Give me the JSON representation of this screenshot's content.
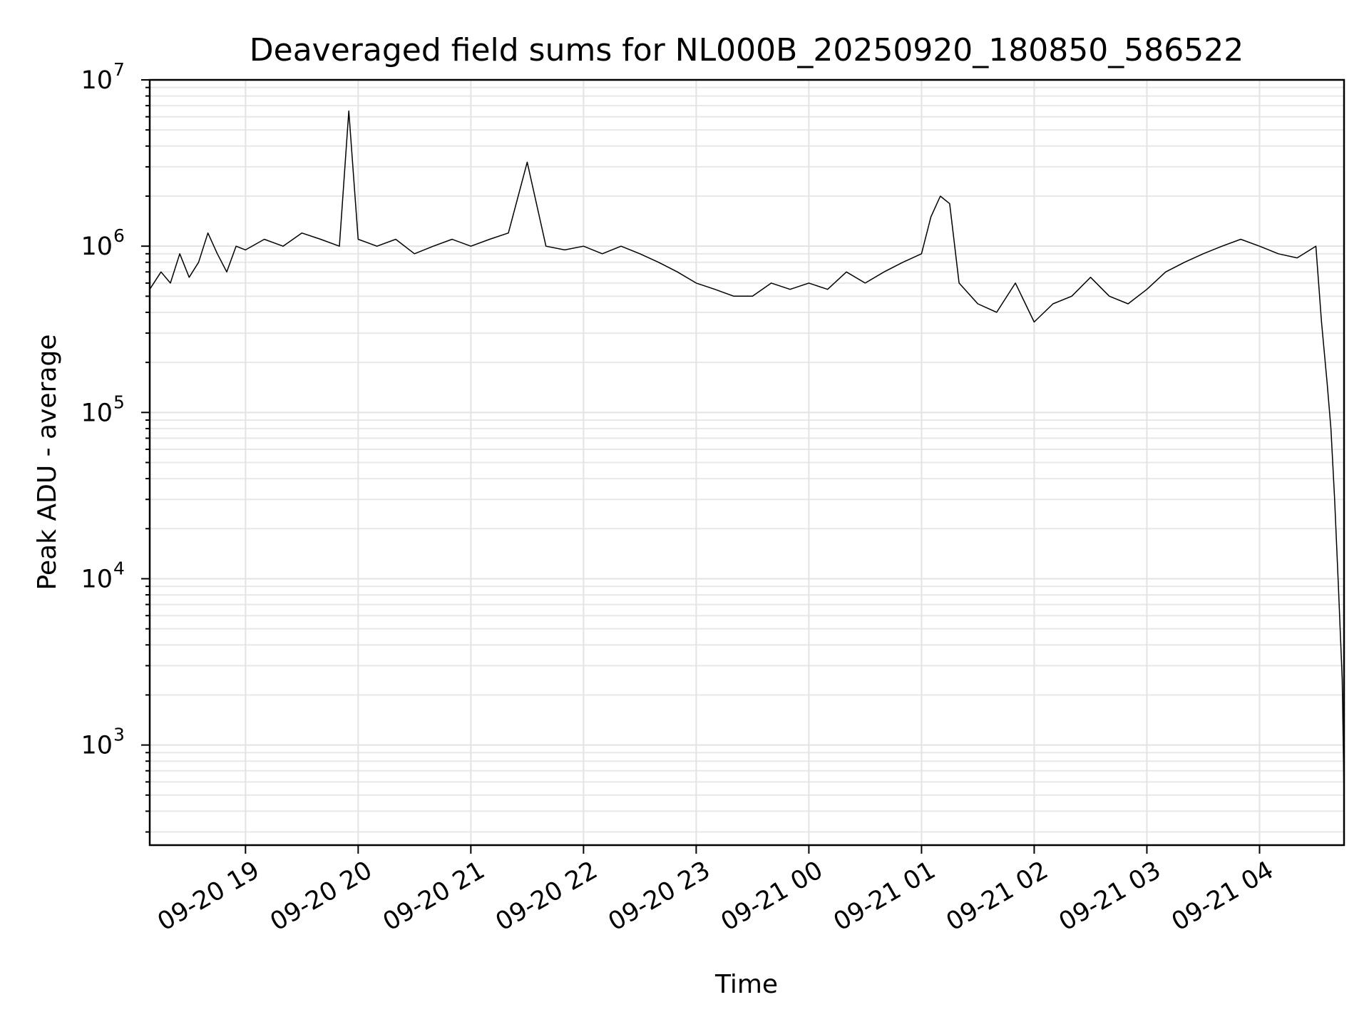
{
  "chart_data": {
    "type": "line",
    "title": "Deaveraged field sums for NL000B_20250920_180850_586522",
    "xlabel": "Time",
    "ylabel": "Peak ADU - average",
    "yscale": "log",
    "ylim": [
      250,
      10000000
    ],
    "xlim": [
      "2025-09-20 18:09",
      "2025-09-21 04:45"
    ],
    "grid": true,
    "x_ticks": [
      {
        "value": "2025-09-20 19:00",
        "label": "09-20 19"
      },
      {
        "value": "2025-09-20 20:00",
        "label": "09-20 20"
      },
      {
        "value": "2025-09-20 21:00",
        "label": "09-20 21"
      },
      {
        "value": "2025-09-20 22:00",
        "label": "09-20 22"
      },
      {
        "value": "2025-09-20 23:00",
        "label": "09-20 23"
      },
      {
        "value": "2025-09-21 00:00",
        "label": "09-21 00"
      },
      {
        "value": "2025-09-21 01:00",
        "label": "09-21 01"
      },
      {
        "value": "2025-09-21 02:00",
        "label": "09-21 02"
      },
      {
        "value": "2025-09-21 03:00",
        "label": "09-21 03"
      },
      {
        "value": "2025-09-21 04:00",
        "label": "09-21 04"
      }
    ],
    "y_ticks": [
      {
        "value": 1000,
        "base": "10",
        "exp": "3"
      },
      {
        "value": 10000,
        "base": "10",
        "exp": "4"
      },
      {
        "value": 100000,
        "base": "10",
        "exp": "5"
      },
      {
        "value": 1000000,
        "base": "10",
        "exp": "6"
      },
      {
        "value": 10000000,
        "base": "10",
        "exp": "7"
      }
    ],
    "series": [
      {
        "color": "#000000",
        "x": [
          "2025-09-20 18:09",
          "2025-09-20 18:15",
          "2025-09-20 18:20",
          "2025-09-20 18:25",
          "2025-09-20 18:30",
          "2025-09-20 18:35",
          "2025-09-20 18:40",
          "2025-09-20 18:45",
          "2025-09-20 18:50",
          "2025-09-20 18:55",
          "2025-09-20 19:00",
          "2025-09-20 19:10",
          "2025-09-20 19:20",
          "2025-09-20 19:30",
          "2025-09-20 19:40",
          "2025-09-20 19:50",
          "2025-09-20 19:55",
          "2025-09-20 20:00",
          "2025-09-20 20:10",
          "2025-09-20 20:20",
          "2025-09-20 20:30",
          "2025-09-20 20:40",
          "2025-09-20 20:50",
          "2025-09-20 21:00",
          "2025-09-20 21:10",
          "2025-09-20 21:20",
          "2025-09-20 21:30",
          "2025-09-20 21:40",
          "2025-09-20 21:50",
          "2025-09-20 22:00",
          "2025-09-20 22:10",
          "2025-09-20 22:20",
          "2025-09-20 22:30",
          "2025-09-20 22:40",
          "2025-09-20 22:50",
          "2025-09-20 23:00",
          "2025-09-20 23:10",
          "2025-09-20 23:20",
          "2025-09-20 23:30",
          "2025-09-20 23:40",
          "2025-09-20 23:50",
          "2025-09-21 00:00",
          "2025-09-21 00:10",
          "2025-09-21 00:20",
          "2025-09-21 00:30",
          "2025-09-21 00:40",
          "2025-09-21 00:50",
          "2025-09-21 01:00",
          "2025-09-21 01:05",
          "2025-09-21 01:10",
          "2025-09-21 01:15",
          "2025-09-21 01:20",
          "2025-09-21 01:30",
          "2025-09-21 01:40",
          "2025-09-21 01:50",
          "2025-09-21 02:00",
          "2025-09-21 02:10",
          "2025-09-21 02:20",
          "2025-09-21 02:30",
          "2025-09-21 02:40",
          "2025-09-21 02:50",
          "2025-09-21 03:00",
          "2025-09-21 03:10",
          "2025-09-21 03:20",
          "2025-09-21 03:30",
          "2025-09-21 03:40",
          "2025-09-21 03:50",
          "2025-09-21 04:00",
          "2025-09-21 04:10",
          "2025-09-21 04:20",
          "2025-09-21 04:30",
          "2025-09-21 04:33",
          "2025-09-21 04:36",
          "2025-09-21 04:38",
          "2025-09-21 04:40",
          "2025-09-21 04:42",
          "2025-09-21 04:44",
          "2025-09-21 04:45"
        ],
        "y": [
          550000,
          700000,
          600000,
          900000,
          650000,
          800000,
          1200000,
          900000,
          700000,
          1000000,
          950000,
          1100000,
          1000000,
          1200000,
          1100000,
          1000000,
          6500000,
          1100000,
          1000000,
          1100000,
          900000,
          1000000,
          1100000,
          1000000,
          1100000,
          1200000,
          3200000,
          1000000,
          950000,
          1000000,
          900000,
          1000000,
          900000,
          800000,
          700000,
          600000,
          550000,
          500000,
          500000,
          600000,
          550000,
          600000,
          550000,
          700000,
          600000,
          700000,
          800000,
          900000,
          1500000,
          2000000,
          1800000,
          600000,
          450000,
          400000,
          600000,
          350000,
          450000,
          500000,
          650000,
          500000,
          450000,
          550000,
          700000,
          800000,
          900000,
          1000000,
          1100000,
          1000000,
          900000,
          850000,
          1000000,
          350000,
          150000,
          80000,
          30000,
          9000,
          2500,
          500
        ]
      }
    ]
  }
}
